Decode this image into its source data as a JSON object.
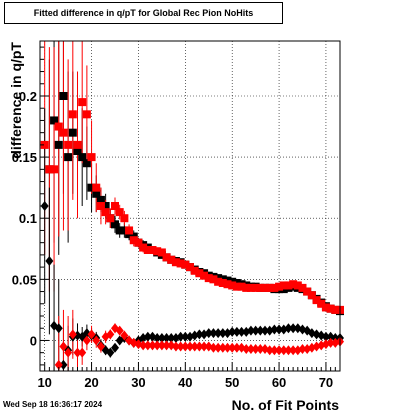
{
  "chart_data": {
    "type": "scatter",
    "title": "Fitted difference in q/pT for Global Rec Pion NoHits",
    "xlabel": "No. of Fit Points",
    "ylabel": "difference in q/pT",
    "xlim": [
      9,
      73
    ],
    "ylim": [
      -0.025,
      0.245
    ],
    "xticks": [
      10,
      20,
      30,
      40,
      50,
      60,
      70
    ],
    "yticks": [
      0,
      0.05,
      0.1,
      0.15,
      0.2
    ],
    "ytick_labels": [
      "0",
      "0.05",
      "0.1",
      "0.15",
      "0.2"
    ],
    "grid": true,
    "timestamp": "Wed Sep 18 16:36:17 2024",
    "series": [
      {
        "color": "#000000",
        "marker": "square",
        "x": [
          11,
          12,
          13,
          14,
          15,
          16,
          17,
          18,
          19,
          20,
          21,
          22,
          23,
          24,
          25,
          26,
          27,
          28,
          29,
          30,
          31,
          32,
          33,
          34,
          35,
          36,
          37,
          38,
          39,
          40,
          41,
          42,
          43,
          44,
          45,
          46,
          47,
          48,
          49,
          50,
          51,
          52,
          53,
          54,
          55,
          56,
          57,
          58,
          59,
          60,
          61,
          62,
          63,
          64,
          65,
          66,
          67,
          68,
          69,
          70,
          71,
          72,
          73
        ],
        "y": [
          0.14,
          0.18,
          0.16,
          0.2,
          0.15,
          0.17,
          0.155,
          0.15,
          0.145,
          0.125,
          0.12,
          0.115,
          0.11,
          0.1,
          0.095,
          0.09,
          0.09,
          0.087,
          0.085,
          0.08,
          0.078,
          0.076,
          0.074,
          0.072,
          0.07,
          0.068,
          0.066,
          0.065,
          0.064,
          0.062,
          0.06,
          0.058,
          0.056,
          0.055,
          0.053,
          0.052,
          0.051,
          0.05,
          0.049,
          0.048,
          0.047,
          0.046,
          0.045,
          0.044,
          0.044,
          0.043,
          0.043,
          0.043,
          0.042,
          0.042,
          0.042,
          0.043,
          0.044,
          0.043,
          0.042,
          0.04,
          0.037,
          0.034,
          0.031,
          0.028,
          0.026,
          0.025,
          0.024
        ],
        "yerr": [
          0.09,
          0.1,
          0.09,
          0.08,
          0.07,
          0.05,
          0.05,
          0.04,
          0.03,
          0.02,
          0.015,
          0.01,
          0.01,
          0.008,
          0.007,
          0.006,
          0.006,
          0.005,
          0.005,
          0.004,
          0.004,
          0.003,
          0.003,
          0.003,
          0.003,
          0.002,
          0.002,
          0.002,
          0.002,
          0.002,
          0.002,
          0.002,
          0.002,
          0.002,
          0.002,
          0.002,
          0.002,
          0.002,
          0.002,
          0.002,
          0.002,
          0.002,
          0.002,
          0.002,
          0.002,
          0.002,
          0.002,
          0.002,
          0.002,
          0.002,
          0.002,
          0.002,
          0.002,
          0.002,
          0.002,
          0.002,
          0.002,
          0.002,
          0.002,
          0.002,
          0.002,
          0.002,
          0.002
        ]
      },
      {
        "color": "#ff0000",
        "marker": "square",
        "x": [
          10,
          11,
          12,
          13,
          14,
          15,
          16,
          17,
          18,
          19,
          20,
          21,
          22,
          23,
          24,
          25,
          26,
          27,
          28,
          29,
          30,
          31,
          32,
          33,
          34,
          35,
          36,
          37,
          38,
          39,
          40,
          41,
          42,
          43,
          44,
          45,
          46,
          47,
          48,
          49,
          50,
          51,
          52,
          53,
          54,
          55,
          56,
          57,
          58,
          59,
          60,
          61,
          62,
          63,
          64,
          65,
          66,
          67,
          68,
          69,
          70,
          71,
          72,
          73
        ],
        "y": [
          0.16,
          0.14,
          0.14,
          0.175,
          0.17,
          0.16,
          0.185,
          0.16,
          0.195,
          0.185,
          0.15,
          0.125,
          0.11,
          0.105,
          0.1,
          0.11,
          0.105,
          0.1,
          0.09,
          0.082,
          0.08,
          0.076,
          0.074,
          0.074,
          0.073,
          0.072,
          0.068,
          0.066,
          0.064,
          0.063,
          0.062,
          0.06,
          0.057,
          0.055,
          0.053,
          0.051,
          0.05,
          0.048,
          0.047,
          0.046,
          0.045,
          0.044,
          0.044,
          0.043,
          0.043,
          0.043,
          0.043,
          0.043,
          0.043,
          0.043,
          0.044,
          0.045,
          0.045,
          0.046,
          0.045,
          0.043,
          0.04,
          0.037,
          0.033,
          0.03,
          0.027,
          0.026,
          0.025,
          0.025
        ],
        "yerr": [
          0.09,
          0.1,
          0.1,
          0.09,
          0.08,
          0.07,
          0.07,
          0.06,
          0.05,
          0.04,
          0.03,
          0.02,
          0.015,
          0.01,
          0.008,
          0.007,
          0.006,
          0.006,
          0.005,
          0.005,
          0.004,
          0.004,
          0.003,
          0.003,
          0.003,
          0.003,
          0.002,
          0.002,
          0.002,
          0.002,
          0.002,
          0.002,
          0.002,
          0.002,
          0.002,
          0.002,
          0.002,
          0.002,
          0.002,
          0.002,
          0.002,
          0.002,
          0.002,
          0.002,
          0.002,
          0.002,
          0.002,
          0.002,
          0.002,
          0.002,
          0.002,
          0.002,
          0.002,
          0.002,
          0.002,
          0.002,
          0.002,
          0.002,
          0.002,
          0.002,
          0.002,
          0.002,
          0.002,
          0.002
        ]
      },
      {
        "color": "#000000",
        "marker": "diamond",
        "x": [
          10,
          11,
          12,
          13,
          14,
          15,
          16,
          17,
          18,
          19,
          20,
          21,
          22,
          23,
          24,
          25,
          26,
          27,
          28,
          29,
          30,
          31,
          32,
          33,
          34,
          35,
          36,
          37,
          38,
          39,
          40,
          41,
          42,
          43,
          44,
          45,
          46,
          47,
          48,
          49,
          50,
          51,
          52,
          53,
          54,
          55,
          56,
          57,
          58,
          59,
          60,
          61,
          62,
          63,
          64,
          65,
          66,
          67,
          68,
          69,
          70,
          71,
          72,
          73
        ],
        "y": [
          0.11,
          0.065,
          0.012,
          0.01,
          -0.02,
          -0.008,
          0.003,
          0.004,
          0.003,
          0.006,
          0.004,
          0.002,
          -0.004,
          -0.008,
          -0.01,
          -0.006,
          0.0,
          0.002,
          0.0,
          -0.002,
          0.0,
          0.002,
          0.003,
          0.003,
          0.002,
          0.002,
          0.002,
          0.002,
          0.002,
          0.003,
          0.003,
          0.003,
          0.004,
          0.005,
          0.005,
          0.006,
          0.006,
          0.006,
          0.006,
          0.006,
          0.007,
          0.007,
          0.007,
          0.007,
          0.008,
          0.008,
          0.008,
          0.008,
          0.008,
          0.009,
          0.009,
          0.009,
          0.01,
          0.01,
          0.01,
          0.009,
          0.008,
          0.006,
          0.005,
          0.004,
          0.003,
          0.003,
          0.002,
          0.002
        ],
        "yerr": [
          0.08,
          0.06,
          0.05,
          0.04,
          0.03,
          0.02,
          0.015,
          0.01,
          0.008,
          0.007,
          0.006,
          0.005,
          0.005,
          0.004,
          0.004,
          0.003,
          0.003,
          0.003,
          0.002,
          0.002,
          0.002,
          0.002,
          0.002,
          0.002,
          0.002,
          0.002,
          0.002,
          0.002,
          0.002,
          0.002,
          0.002,
          0.002,
          0.002,
          0.002,
          0.002,
          0.002,
          0.002,
          0.002,
          0.002,
          0.002,
          0.002,
          0.002,
          0.002,
          0.002,
          0.002,
          0.002,
          0.002,
          0.002,
          0.002,
          0.002,
          0.002,
          0.002,
          0.002,
          0.002,
          0.002,
          0.002,
          0.002,
          0.002,
          0.002,
          0.002,
          0.002,
          0.002,
          0.002,
          0.002
        ]
      },
      {
        "color": "#ff0000",
        "marker": "diamond",
        "x": [
          13,
          14,
          15,
          16,
          17,
          18,
          19,
          20,
          21,
          22,
          23,
          24,
          25,
          26,
          27,
          28,
          29,
          30,
          31,
          32,
          33,
          34,
          35,
          36,
          37,
          38,
          39,
          40,
          41,
          42,
          43,
          44,
          45,
          46,
          47,
          48,
          49,
          50,
          51,
          52,
          53,
          54,
          55,
          56,
          57,
          58,
          59,
          60,
          61,
          62,
          63,
          64,
          65,
          66,
          67,
          68,
          69,
          70,
          71,
          72,
          73
        ],
        "y": [
          -0.02,
          -0.005,
          -0.01,
          0.005,
          -0.01,
          -0.01,
          0.0,
          0.005,
          0.0,
          -0.005,
          0.003,
          0.005,
          0.01,
          0.008,
          0.004,
          0.0,
          -0.002,
          -0.003,
          -0.004,
          -0.004,
          -0.004,
          -0.004,
          -0.004,
          -0.004,
          -0.004,
          -0.005,
          -0.005,
          -0.005,
          -0.005,
          -0.005,
          -0.005,
          -0.005,
          -0.005,
          -0.006,
          -0.006,
          -0.006,
          -0.006,
          -0.006,
          -0.006,
          -0.006,
          -0.007,
          -0.007,
          -0.007,
          -0.007,
          -0.007,
          -0.008,
          -0.008,
          -0.008,
          -0.008,
          -0.008,
          -0.008,
          -0.008,
          -0.007,
          -0.007,
          -0.006,
          -0.005,
          -0.004,
          -0.003,
          -0.002,
          -0.002,
          -0.001
        ],
        "yerr": [
          0.04,
          0.03,
          0.03,
          0.02,
          0.015,
          0.01,
          0.008,
          0.007,
          0.006,
          0.005,
          0.005,
          0.004,
          0.004,
          0.003,
          0.003,
          0.003,
          0.002,
          0.002,
          0.002,
          0.002,
          0.002,
          0.002,
          0.002,
          0.002,
          0.002,
          0.002,
          0.002,
          0.002,
          0.002,
          0.002,
          0.002,
          0.002,
          0.002,
          0.002,
          0.002,
          0.002,
          0.002,
          0.002,
          0.002,
          0.002,
          0.002,
          0.002,
          0.002,
          0.002,
          0.002,
          0.002,
          0.002,
          0.002,
          0.002,
          0.002,
          0.002,
          0.002,
          0.002,
          0.002,
          0.002,
          0.002,
          0.002,
          0.002,
          0.002,
          0.002,
          0.002
        ]
      }
    ]
  }
}
